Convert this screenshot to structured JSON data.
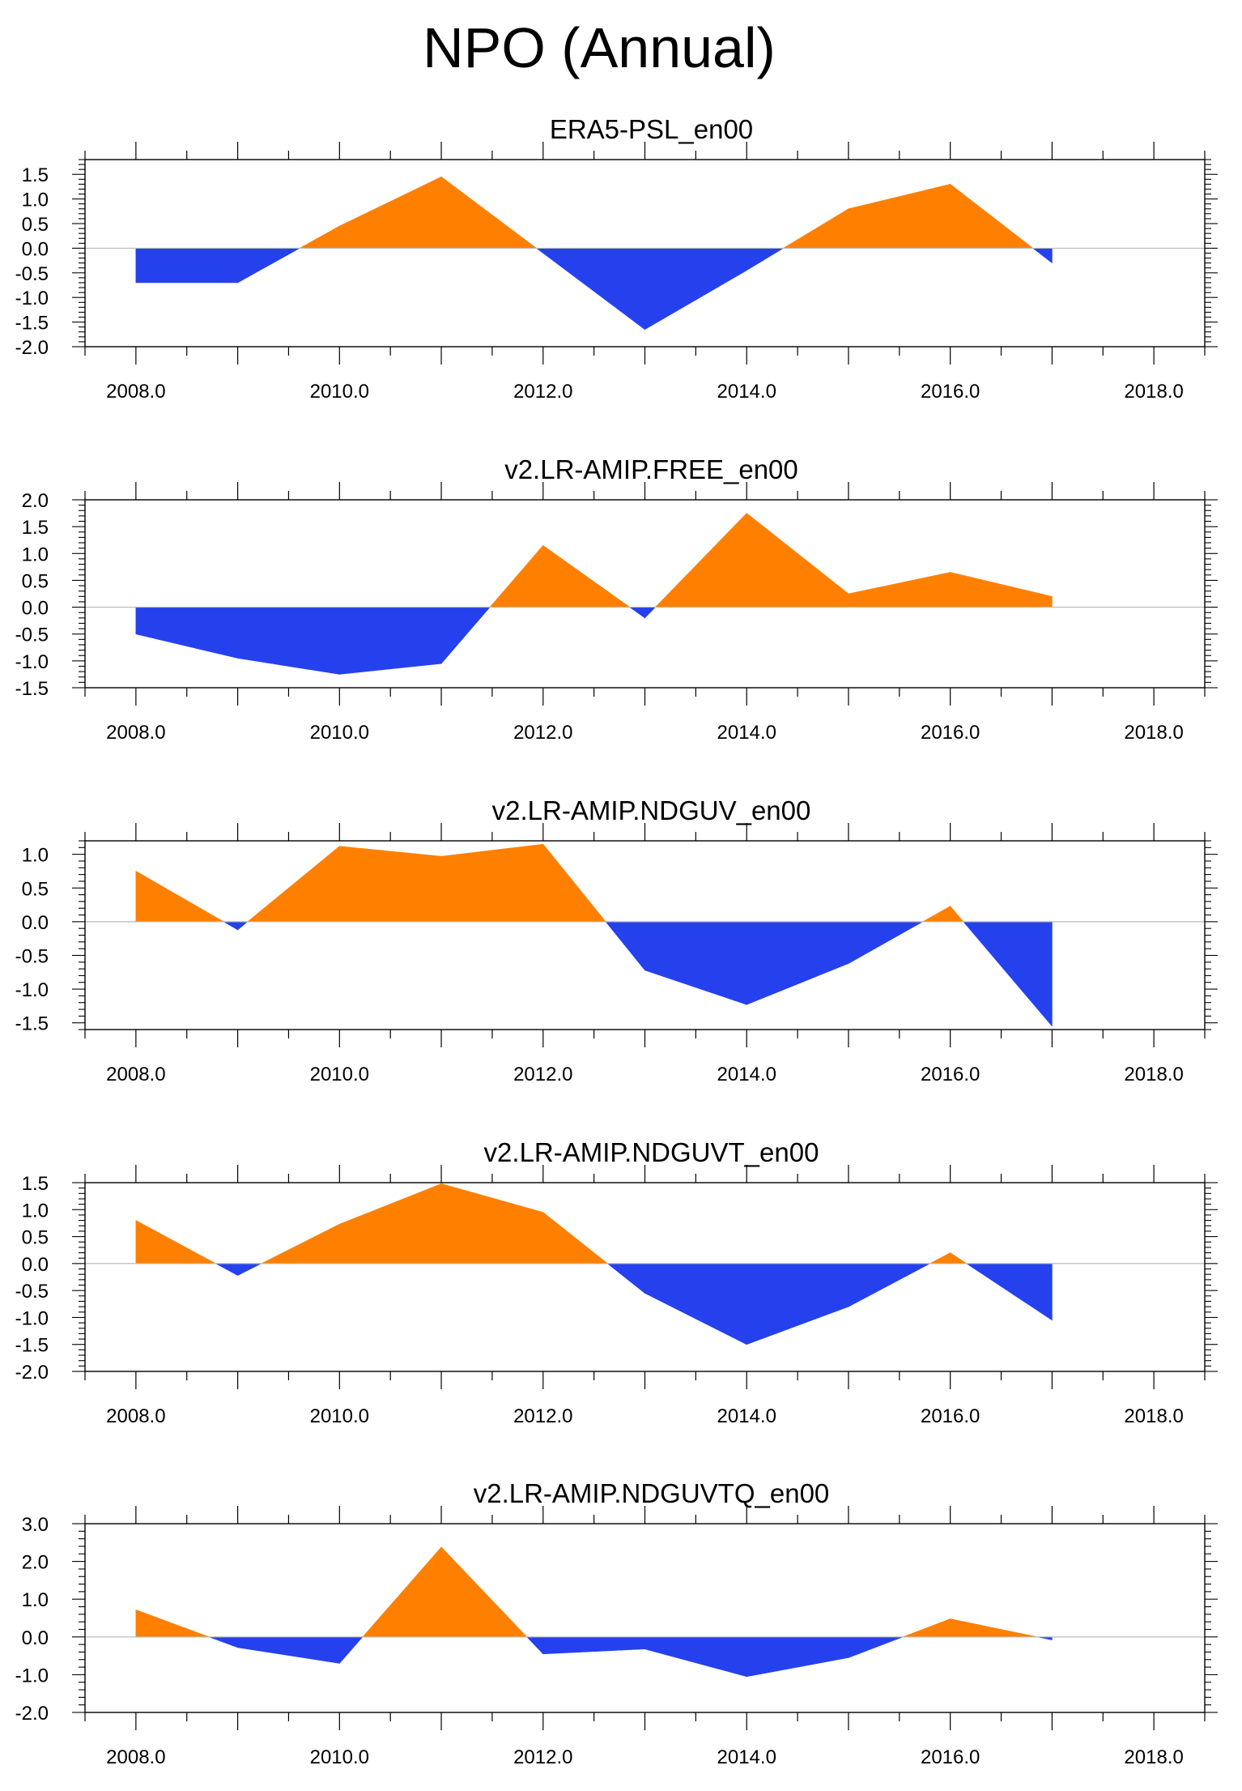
{
  "figure": {
    "title": "NPO (Annual)",
    "positive_color": "#ff8000",
    "negative_color": "#2541ed"
  },
  "chart_data": [
    {
      "type": "area",
      "title": "ERA5-PSL_en00",
      "x": [
        2008,
        2009,
        2010,
        2011,
        2012,
        2013,
        2014,
        2015,
        2016,
        2017
      ],
      "values": [
        -0.7,
        -0.7,
        0.45,
        1.45,
        -0.1,
        -1.65,
        -0.45,
        0.8,
        1.3,
        -0.3
      ],
      "xlim": [
        2007.5,
        2018.5
      ],
      "ylim": [
        -2.0,
        1.8
      ],
      "xticks": [
        "2008.0",
        "2010.0",
        "2012.0",
        "2014.0",
        "2016.0",
        "2018.0"
      ],
      "yticks": [
        "1.5",
        "1.0",
        "0.5",
        "0.0",
        "-0.5",
        "-1.0",
        "-1.5",
        "-2.0"
      ]
    },
    {
      "type": "area",
      "title": "v2.LR-AMIP.FREE_en00",
      "x": [
        2008,
        2009,
        2010,
        2011,
        2012,
        2013,
        2014,
        2015,
        2016,
        2017
      ],
      "values": [
        -0.5,
        -0.95,
        -1.25,
        -1.05,
        1.15,
        -0.2,
        1.75,
        0.25,
        0.65,
        0.2
      ],
      "xlim": [
        2007.5,
        2018.5
      ],
      "ylim": [
        -1.5,
        2.0
      ],
      "xticks": [
        "2008.0",
        "2010.0",
        "2012.0",
        "2014.0",
        "2016.0",
        "2018.0"
      ],
      "yticks": [
        "2.0",
        "1.5",
        "1.0",
        "0.5",
        "0.0",
        "-0.5",
        "-1.0",
        "-1.5"
      ]
    },
    {
      "type": "area",
      "title": "v2.LR-AMIP.NDGUV_en00",
      "x": [
        2008,
        2009,
        2010,
        2011,
        2012,
        2013,
        2014,
        2015,
        2016,
        2017
      ],
      "values": [
        0.75,
        -0.12,
        1.12,
        0.97,
        1.15,
        -0.72,
        -1.23,
        -0.62,
        0.23,
        -1.55
      ],
      "xlim": [
        2007.5,
        2018.5
      ],
      "ylim": [
        -1.6,
        1.2
      ],
      "xticks": [
        "2008.0",
        "2010.0",
        "2012.0",
        "2014.0",
        "2016.0",
        "2018.0"
      ],
      "yticks": [
        "1.0",
        "0.5",
        "0.0",
        "-0.5",
        "-1.0",
        "-1.5"
      ]
    },
    {
      "type": "area",
      "title": "v2.LR-AMIP.NDGUVT_en00",
      "x": [
        2008,
        2009,
        2010,
        2011,
        2012,
        2013,
        2014,
        2015,
        2016,
        2017
      ],
      "values": [
        0.8,
        -0.22,
        0.73,
        1.48,
        0.95,
        -0.55,
        -1.5,
        -0.8,
        0.2,
        -1.05
      ],
      "xlim": [
        2007.5,
        2018.5
      ],
      "ylim": [
        -2.0,
        1.5
      ],
      "xticks": [
        "2008.0",
        "2010.0",
        "2012.0",
        "2014.0",
        "2016.0",
        "2018.0"
      ],
      "yticks": [
        "1.5",
        "1.0",
        "0.5",
        "0.0",
        "-0.5",
        "-1.0",
        "-1.5",
        "-2.0"
      ]
    },
    {
      "type": "area",
      "title": "v2.LR-AMIP.NDGUVTQ_en00",
      "x": [
        2008,
        2009,
        2010,
        2011,
        2012,
        2013,
        2014,
        2015,
        2016,
        2017
      ],
      "values": [
        0.72,
        -0.28,
        -0.7,
        2.38,
        -0.45,
        -0.32,
        -1.05,
        -0.55,
        0.48,
        -0.08
      ],
      "xlim": [
        2007.5,
        2018.5
      ],
      "ylim": [
        -2.0,
        3.0
      ],
      "xticks": [
        "2008.0",
        "2010.0",
        "2012.0",
        "2014.0",
        "2016.0",
        "2018.0"
      ],
      "yticks": [
        "3.0",
        "2.0",
        "1.0",
        "0.0",
        "-1.0",
        "-2.0"
      ]
    }
  ]
}
